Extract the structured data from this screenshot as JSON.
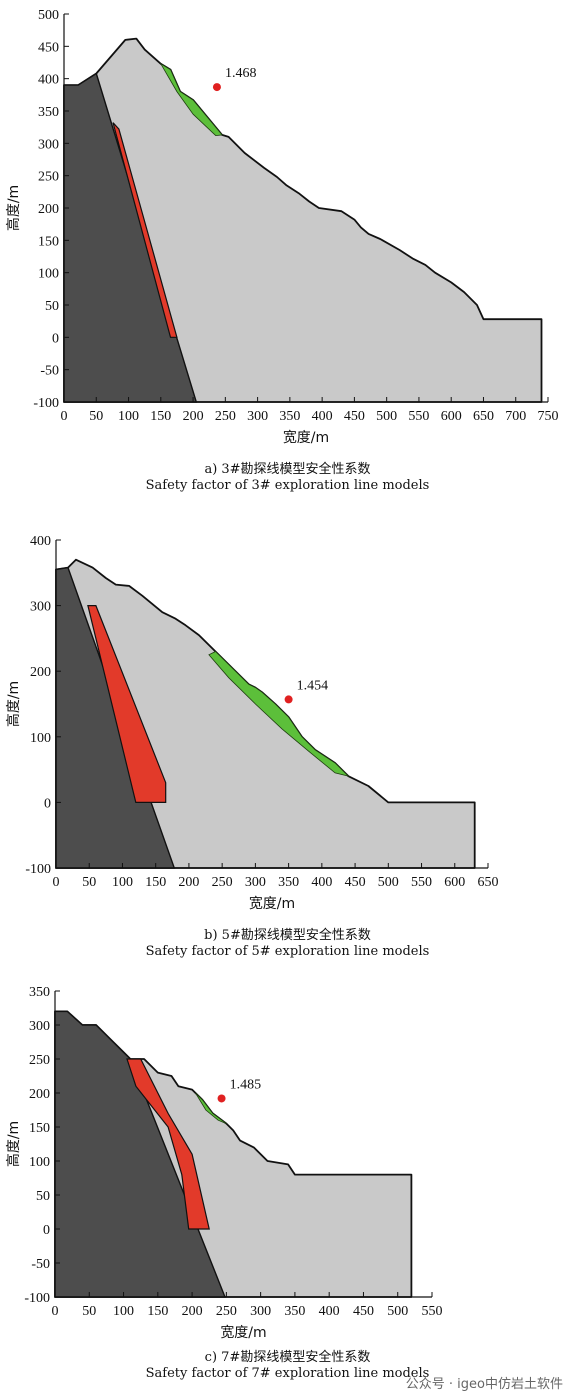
{
  "colors": {
    "rock": "#4d4d4d",
    "slope": "#c9c9c9",
    "sliding_mass": "#5cbf3a",
    "weak_zone": "#e23a2a",
    "center_point": "#e02020"
  },
  "chart_data": [
    {
      "type": "area",
      "caption_cn": "a) 3#勘探线模型安全性系数",
      "caption_en": "Safety factor of 3# exploration line models",
      "xlabel": "宽度/m",
      "ylabel": "高度/m",
      "xlim": [
        0,
        750
      ],
      "ylim": [
        -100,
        500
      ],
      "xticks": [
        0,
        50,
        100,
        150,
        200,
        250,
        300,
        350,
        400,
        450,
        500,
        550,
        600,
        650,
        700,
        750
      ],
      "yticks": [
        -100,
        -50,
        0,
        50,
        100,
        150,
        200,
        250,
        300,
        350,
        400,
        450,
        500
      ],
      "safety_factor": "1.468",
      "center": [
        237,
        387
      ],
      "slope_outline": [
        [
          0,
          390
        ],
        [
          22,
          390
        ],
        [
          50,
          408
        ],
        [
          95,
          460
        ],
        [
          112,
          462
        ],
        [
          125,
          445
        ],
        [
          150,
          423
        ],
        [
          165,
          414
        ],
        [
          180,
          380
        ],
        [
          200,
          367
        ],
        [
          245,
          313
        ],
        [
          255,
          310
        ],
        [
          280,
          285
        ],
        [
          310,
          262
        ],
        [
          330,
          248
        ],
        [
          345,
          235
        ],
        [
          365,
          222
        ],
        [
          380,
          210
        ],
        [
          395,
          200
        ],
        [
          430,
          195
        ],
        [
          450,
          182
        ],
        [
          460,
          170
        ],
        [
          472,
          160
        ],
        [
          490,
          152
        ],
        [
          520,
          135
        ],
        [
          540,
          122
        ],
        [
          560,
          112
        ],
        [
          575,
          100
        ],
        [
          600,
          85
        ],
        [
          620,
          70
        ],
        [
          640,
          50
        ],
        [
          650,
          28
        ],
        [
          740,
          28
        ],
        [
          740,
          -100
        ],
        [
          0,
          -100
        ]
      ],
      "rock": [
        [
          0,
          390
        ],
        [
          22,
          390
        ],
        [
          50,
          408
        ],
        [
          205,
          -100
        ],
        [
          0,
          -100
        ]
      ],
      "sliding_mass": [
        [
          150,
          423
        ],
        [
          165,
          414
        ],
        [
          180,
          380
        ],
        [
          200,
          367
        ],
        [
          245,
          313
        ],
        [
          235,
          312
        ],
        [
          200,
          345
        ],
        [
          175,
          380
        ]
      ],
      "weak_zone": [
        [
          76,
          332
        ],
        [
          85,
          322
        ],
        [
          175,
          0
        ],
        [
          165,
          0
        ]
      ]
    },
    {
      "type": "area",
      "caption_cn": "b) 5#勘探线模型安全性系数",
      "caption_en": "Safety factor of 5# exploration line models",
      "xlabel": "宽度/m",
      "ylabel": "高度/m",
      "xlim": [
        0,
        650
      ],
      "ylim": [
        -100,
        400
      ],
      "xticks": [
        0,
        50,
        100,
        150,
        200,
        250,
        300,
        350,
        400,
        450,
        500,
        550,
        600,
        650
      ],
      "yticks": [
        -100,
        0,
        100,
        200,
        300,
        400
      ],
      "safety_factor": "1.454",
      "center": [
        350,
        157
      ],
      "slope_outline": [
        [
          0,
          355
        ],
        [
          18,
          358
        ],
        [
          30,
          370
        ],
        [
          55,
          358
        ],
        [
          75,
          342
        ],
        [
          90,
          332
        ],
        [
          110,
          330
        ],
        [
          130,
          315
        ],
        [
          160,
          290
        ],
        [
          180,
          280
        ],
        [
          195,
          270
        ],
        [
          215,
          255
        ],
        [
          240,
          230
        ],
        [
          260,
          210
        ],
        [
          275,
          195
        ],
        [
          290,
          180
        ],
        [
          300,
          175
        ],
        [
          310,
          168
        ],
        [
          330,
          150
        ],
        [
          350,
          130
        ],
        [
          370,
          100
        ],
        [
          390,
          80
        ],
        [
          420,
          60
        ],
        [
          440,
          40
        ],
        [
          470,
          25
        ],
        [
          500,
          0
        ],
        [
          630,
          0
        ],
        [
          630,
          -100
        ],
        [
          0,
          -100
        ]
      ],
      "rock": [
        [
          0,
          355
        ],
        [
          18,
          358
        ],
        [
          178,
          -100
        ],
        [
          0,
          -100
        ]
      ],
      "sliding_mass": [
        [
          240,
          230
        ],
        [
          260,
          210
        ],
        [
          275,
          195
        ],
        [
          290,
          180
        ],
        [
          300,
          175
        ],
        [
          310,
          168
        ],
        [
          330,
          150
        ],
        [
          350,
          130
        ],
        [
          370,
          100
        ],
        [
          390,
          80
        ],
        [
          420,
          60
        ],
        [
          440,
          40
        ],
        [
          420,
          45
        ],
        [
          380,
          78
        ],
        [
          340,
          112
        ],
        [
          300,
          150
        ],
        [
          260,
          190
        ],
        [
          230,
          225
        ]
      ],
      "weak_zone": [
        [
          48,
          300
        ],
        [
          60,
          300
        ],
        [
          165,
          30
        ],
        [
          165,
          0
        ],
        [
          120,
          0
        ]
      ]
    },
    {
      "type": "area",
      "caption_cn": "c) 7#勘探线模型安全性系数",
      "caption_en": "Safety factor of 7# exploration line models",
      "xlabel": "宽度/m",
      "ylabel": "高度/m",
      "xlim": [
        0,
        550
      ],
      "ylim": [
        -100,
        350
      ],
      "xticks": [
        0,
        50,
        100,
        150,
        200,
        250,
        300,
        350,
        400,
        450,
        500,
        550
      ],
      "yticks": [
        -100,
        -50,
        0,
        50,
        100,
        150,
        200,
        250,
        300,
        350
      ],
      "safety_factor": "1.485",
      "center": [
        243,
        192
      ],
      "slope_outline": [
        [
          0,
          320
        ],
        [
          18,
          320
        ],
        [
          40,
          300
        ],
        [
          60,
          300
        ],
        [
          80,
          280
        ],
        [
          100,
          260
        ],
        [
          110,
          250
        ],
        [
          130,
          250
        ],
        [
          150,
          230
        ],
        [
          170,
          225
        ],
        [
          180,
          210
        ],
        [
          200,
          205
        ],
        [
          215,
          190
        ],
        [
          230,
          170
        ],
        [
          250,
          155
        ],
        [
          260,
          145
        ],
        [
          270,
          130
        ],
        [
          290,
          120
        ],
        [
          310,
          100
        ],
        [
          340,
          95
        ],
        [
          350,
          80
        ],
        [
          520,
          80
        ],
        [
          520,
          -100
        ],
        [
          0,
          -100
        ]
      ],
      "rock": [
        [
          0,
          320
        ],
        [
          18,
          320
        ],
        [
          40,
          300
        ],
        [
          60,
          300
        ],
        [
          80,
          280
        ],
        [
          100,
          260
        ],
        [
          110,
          250
        ],
        [
          248,
          -100
        ],
        [
          0,
          -100
        ]
      ],
      "sliding_mass": [
        [
          205,
          200
        ],
        [
          215,
          190
        ],
        [
          230,
          170
        ],
        [
          250,
          155
        ],
        [
          238,
          160
        ],
        [
          220,
          175
        ]
      ],
      "weak_zone": [
        [
          105,
          250
        ],
        [
          125,
          250
        ],
        [
          165,
          170
        ],
        [
          200,
          110
        ],
        [
          225,
          0
        ],
        [
          195,
          0
        ],
        [
          185,
          80
        ],
        [
          165,
          150
        ],
        [
          118,
          210
        ]
      ]
    }
  ],
  "watermark": "公众号 · igeo中仿岩土软件"
}
